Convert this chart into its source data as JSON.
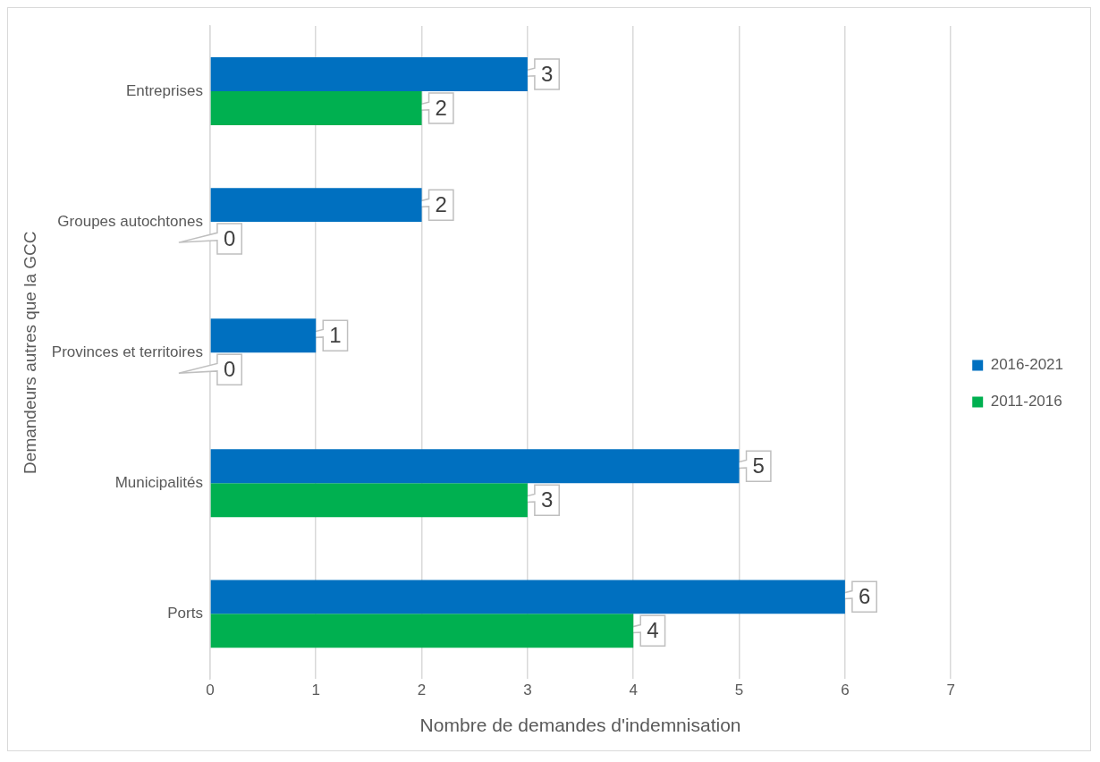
{
  "chart_data": {
    "type": "bar",
    "orientation": "horizontal",
    "xlabel": "Nombre de demandes d'indemnisation",
    "ylabel": "Demandeurs autres que la GCC",
    "categories": [
      "Entreprises",
      "Groupes autochtones",
      "Provinces et territoires",
      "Municipalités",
      "Ports"
    ],
    "series": [
      {
        "name": "2016-2021",
        "color": "#0070c0",
        "values": [
          3,
          2,
          1,
          5,
          6
        ]
      },
      {
        "name": "2011-2016",
        "color": "#00b050",
        "values": [
          2,
          0,
          0,
          3,
          4
        ]
      }
    ],
    "xlim": [
      0,
      7
    ],
    "xticks": [
      0,
      1,
      2,
      3,
      4,
      5,
      6,
      7
    ],
    "grid": "x",
    "legend": "right",
    "data_labels": true
  }
}
